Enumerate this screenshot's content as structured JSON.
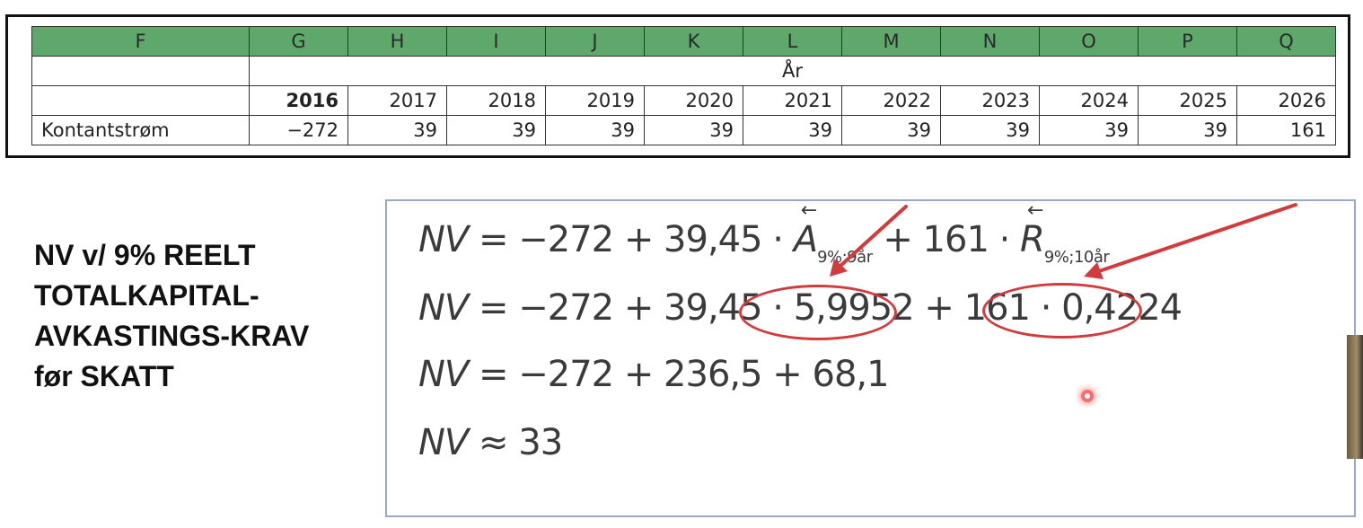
{
  "sheet": {
    "columns": [
      "F",
      "G",
      "H",
      "I",
      "J",
      "K",
      "L",
      "M",
      "N",
      "O",
      "P",
      "Q"
    ],
    "group_header": "År",
    "years": [
      "2016",
      "2017",
      "2018",
      "2019",
      "2020",
      "2021",
      "2022",
      "2023",
      "2024",
      "2025",
      "2026"
    ],
    "row_label": "Kontantstrøm",
    "values": [
      "−272",
      "39",
      "39",
      "39",
      "39",
      "39",
      "39",
      "39",
      "39",
      "39",
      "161"
    ]
  },
  "heading": {
    "line1": "NV v/ 9% REELT",
    "line2": "TOTALKAPITAL-",
    "line3": "AVKASTINGS-KRAV",
    "line4": "før SKATT"
  },
  "formula": {
    "line1": {
      "lhs": "NV",
      "body1": " = −272 + 39,45 · ",
      "symA": "A",
      "subA": "9%;9år",
      "body2": " + 161 · ",
      "symR": "R",
      "subR": "9%;10år",
      "arrow": "←"
    },
    "line2": {
      "lhs": "NV",
      "body1": " = −272 + 39,45 · ",
      "factor1": "5,9952",
      "body2": " + 161 · ",
      "factor2": "0,4224"
    },
    "line3": {
      "lhs": "NV",
      "body": " = −272 + 236,5 + 68,1"
    },
    "line4": {
      "lhs": "NV",
      "body": " ≈  33"
    }
  },
  "colors": {
    "header_green": "#5fa86c",
    "annotation_red": "#d23b3b",
    "panel_border": "#9aa9c4"
  }
}
